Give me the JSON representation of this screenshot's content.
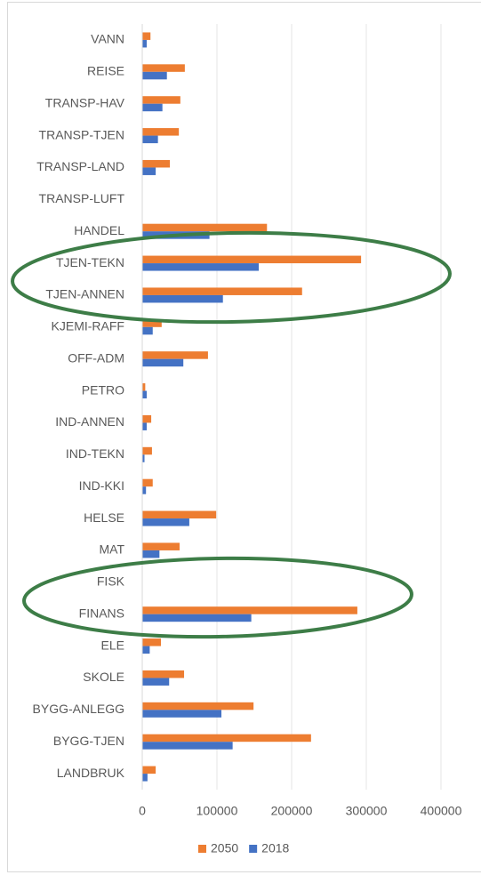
{
  "chart_data": {
    "type": "barh",
    "categories": [
      "VANN",
      "REISE",
      "TRANSP-HAV",
      "TRANSP-TJEN",
      "TRANSP-LAND",
      "TRANSP-LUFT",
      "HANDEL",
      "TJEN-TEKN",
      "TJEN-ANNEN",
      "KJEMI-RAFF",
      "OFF-ADM",
      "PETRO",
      "IND-ANNEN",
      "IND-TEKN",
      "IND-KKI",
      "HELSE",
      "MAT",
      "FISK",
      "FINANS",
      "ELE",
      "SKOLE",
      "BYGG-ANLEGG",
      "BYGG-TJEN",
      "LANDBRUK"
    ],
    "series": [
      {
        "name": "2050",
        "color": "#ed7d31",
        "values": [
          11000,
          57000,
          51000,
          49000,
          37000,
          0,
          167000,
          293000,
          214000,
          26000,
          88000,
          4000,
          12000,
          13000,
          14000,
          99000,
          50000,
          0,
          288000,
          25000,
          56000,
          149000,
          226000,
          18000
        ]
      },
      {
        "name": "2018",
        "color": "#4472c4",
        "values": [
          6000,
          33000,
          27000,
          21000,
          18000,
          0,
          90000,
          156000,
          108000,
          14000,
          55000,
          6000,
          6000,
          3000,
          5000,
          63000,
          23000,
          0,
          146000,
          10000,
          36000,
          106000,
          121000,
          7000
        ]
      }
    ],
    "xlim": [
      0,
      400000
    ],
    "xticks": [
      0,
      100000,
      200000,
      300000,
      400000
    ],
    "grid": true,
    "legend": "bottom"
  }
}
